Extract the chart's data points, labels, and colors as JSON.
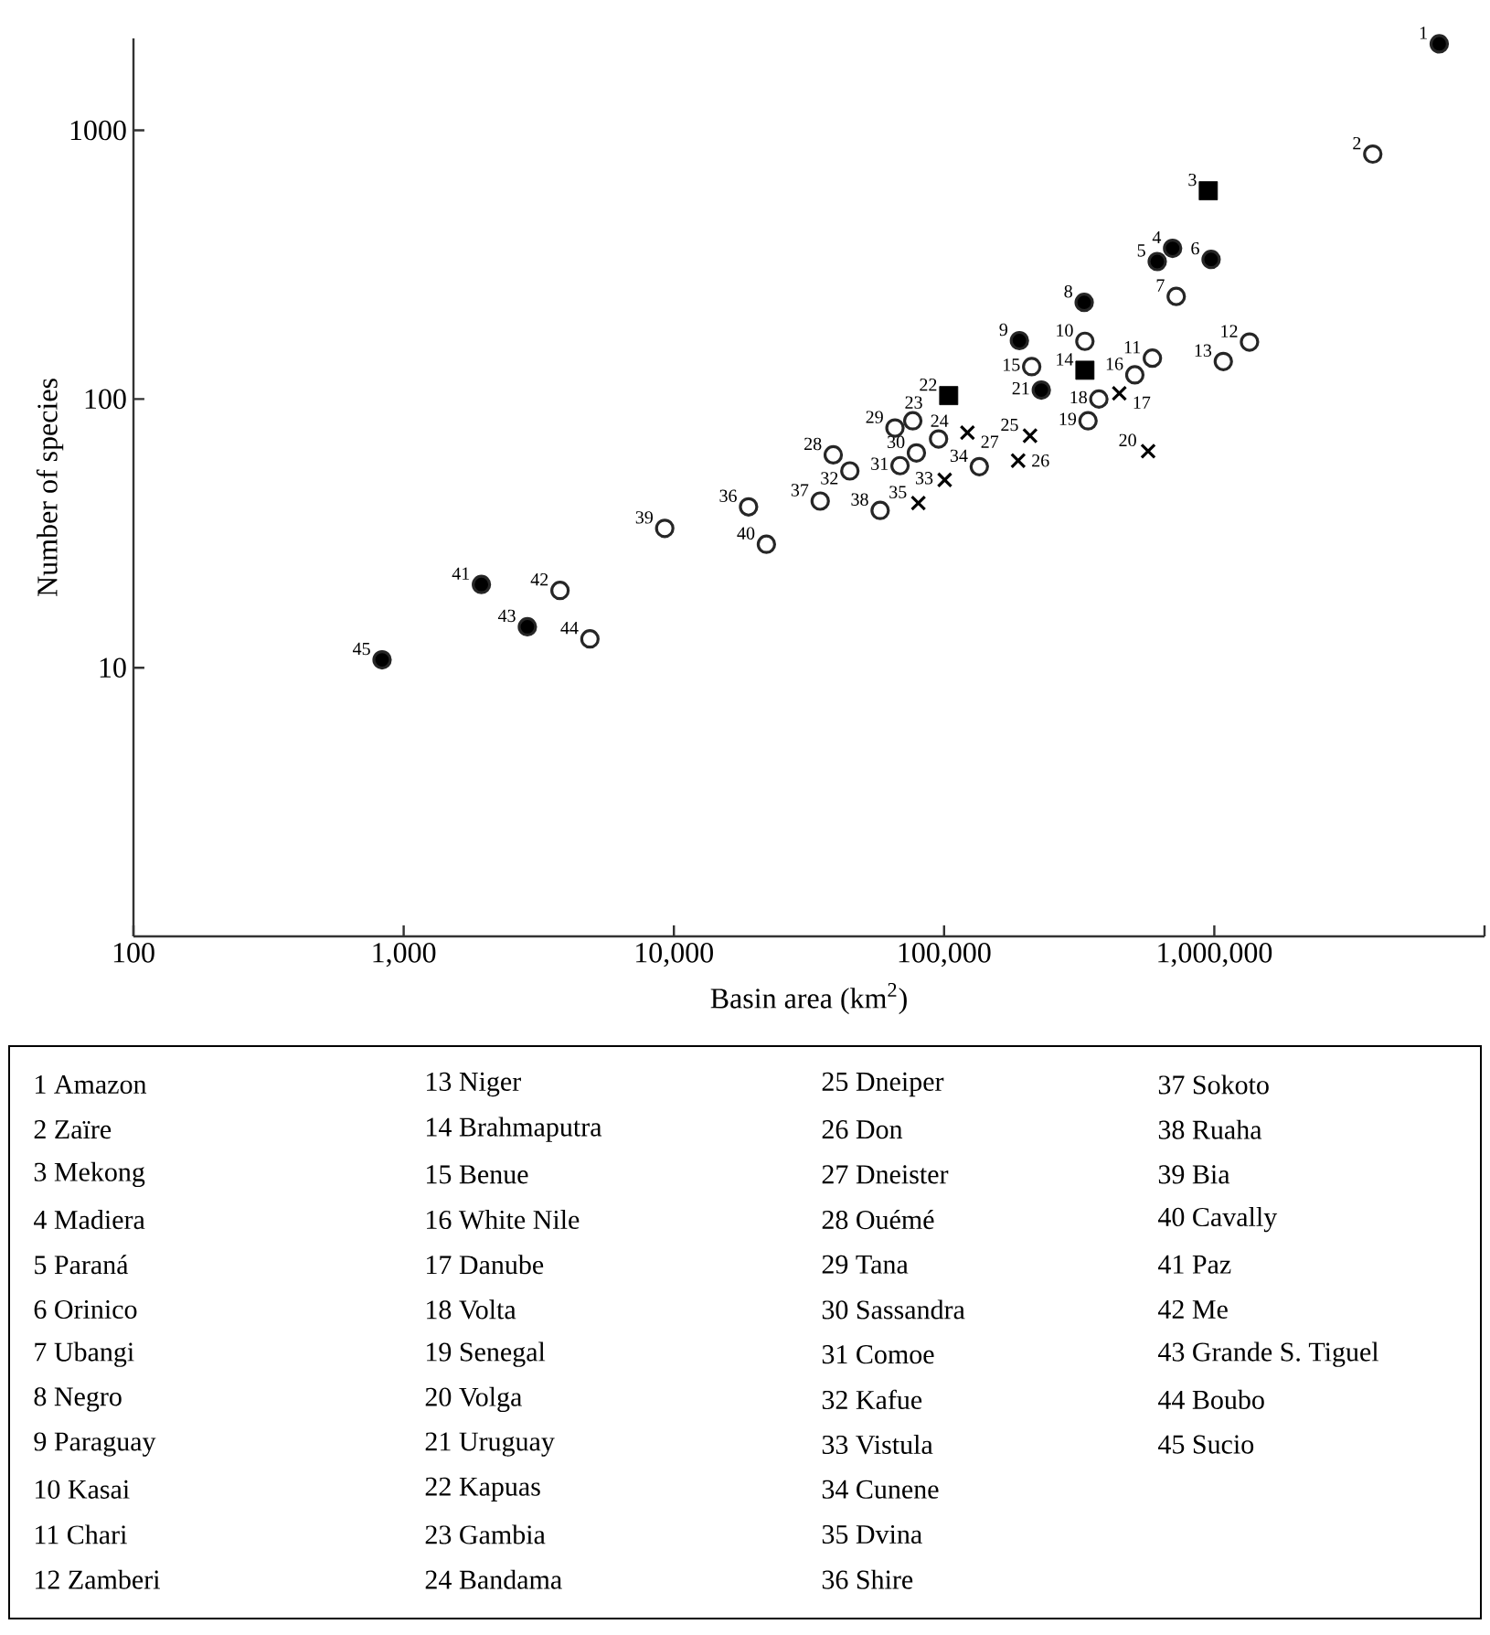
{
  "chart_data": {
    "type": "scatter",
    "xlabel": "Basin area (km$^{2}$)",
    "ylabel": "Number of species",
    "log": "xy",
    "xlim": [
      100,
      10000000
    ],
    "ylim": [
      1,
      2200
    ],
    "xticks": [
      100,
      {
        "value": 1000,
        "label": "1,000"
      },
      {
        "value": 10000,
        "label": "10,000"
      },
      {
        "value": 100000,
        "label": "100,000"
      },
      {
        "value": 1000000,
        "label": "1,000,000"
      },
      {
        "value": 10000000,
        "label": null
      }
    ],
    "yticks": [
      10,
      100,
      1000
    ],
    "series": [
      {
        "marker": "circle",
        "color": "#000000",
        "x": [
          6800000,
          701000,
          615000,
          973000,
          330000,
          190000,
          229000,
          1940,
          2870,
          832
        ],
        "values": [
          2100,
          364,
          325,
          331,
          229,
          165,
          108,
          20.4,
          14.2,
          10.7
        ]
      },
      {
        "marker": "square",
        "color": "#000000",
        "x": [
          950000,
          332000,
          104000
        ],
        "values": [
          596,
          128,
          103
        ]
      },
      {
        "marker": "cross",
        "color": "#000000",
        "x": [
          445000,
          569000,
          208000,
          188000,
          122000,
          100500,
          80300
        ],
        "values": [
          105,
          64,
          73,
          59,
          75,
          50,
          41
        ]
      },
      {
        "marker": "circle",
        "color": "#ffffff",
        "x": [
          3860000,
          723000,
          332000,
          590000,
          1350000,
          1080000,
          211000,
          508000,
          374000,
          341000,
          76600,
          95400,
          38900,
          65800,
          79000,
          68700,
          44800,
          135000,
          58000,
          18900,
          34800,
          9250,
          22000,
          3790,
          4890
        ],
        "values": [
          816,
          241,
          164,
          142,
          163,
          138,
          132,
          123,
          100,
          83,
          83,
          71,
          62,
          78,
          63,
          56.5,
          54,
          56,
          38.5,
          39.7,
          41.7,
          33,
          28.8,
          19.4,
          12.8
        ]
      }
    ],
    "annotations": [
      {
        "text": "1",
        "x": 6800000,
        "y": 2100
      },
      {
        "text": "2",
        "x": 3860000,
        "y": 816
      },
      {
        "text": "3",
        "x": 950000,
        "y": 596
      },
      {
        "text": "4",
        "x": 701000,
        "y": 364
      },
      {
        "text": "5",
        "x": 615000,
        "y": 325
      },
      {
        "text": "6",
        "x": 973000,
        "y": 331
      },
      {
        "text": "7",
        "x": 723000,
        "y": 241
      },
      {
        "text": "8",
        "x": 330000,
        "y": 229
      },
      {
        "text": "9",
        "x": 190000,
        "y": 165
      },
      {
        "text": "10",
        "x": 332000,
        "y": 164
      },
      {
        "text": "11",
        "x": 590000,
        "y": 142
      },
      {
        "text": "12",
        "x": 1350000,
        "y": 163
      },
      {
        "text": "13",
        "x": 1080000,
        "y": 138
      },
      {
        "text": "14",
        "x": 332000,
        "y": 128
      },
      {
        "text": "15",
        "x": 211000,
        "y": 132
      },
      {
        "text": "16",
        "x": 508000,
        "y": 123
      },
      {
        "text": "17",
        "x": 445000,
        "y": 105
      },
      {
        "text": "18",
        "x": 374000,
        "y": 100
      },
      {
        "text": "19",
        "x": 341000,
        "y": 83
      },
      {
        "text": "20",
        "x": 569000,
        "y": 64
      },
      {
        "text": "21",
        "x": 229000,
        "y": 108
      },
      {
        "text": "22",
        "x": 104000,
        "y": 103
      },
      {
        "text": "23",
        "x": 76600,
        "y": 83
      },
      {
        "text": "24",
        "x": 95400,
        "y": 71
      },
      {
        "text": "25",
        "x": 208000,
        "y": 73
      },
      {
        "text": "26",
        "x": 188000,
        "y": 59
      },
      {
        "text": "27",
        "x": 122000,
        "y": 75
      },
      {
        "text": "28",
        "x": 38900,
        "y": 62
      },
      {
        "text": "29",
        "x": 65800,
        "y": 78
      },
      {
        "text": "30",
        "x": 79000,
        "y": 63
      },
      {
        "text": "31",
        "x": 68700,
        "y": 56.5
      },
      {
        "text": "32",
        "x": 44800,
        "y": 54
      },
      {
        "text": "33",
        "x": 100500,
        "y": 50
      },
      {
        "text": "34",
        "x": 135000,
        "y": 56
      },
      {
        "text": "35",
        "x": 80300,
        "y": 41
      },
      {
        "text": "36",
        "x": 18900,
        "y": 39.7
      },
      {
        "text": "37",
        "x": 34800,
        "y": 41.7
      },
      {
        "text": "38",
        "x": 58000,
        "y": 38.5
      },
      {
        "text": "39",
        "x": 9250,
        "y": 33
      },
      {
        "text": "40",
        "x": 22000,
        "y": 28.8
      },
      {
        "text": "41",
        "x": 1940,
        "y": 20.4
      },
      {
        "text": "42",
        "x": 3790,
        "y": 19.4
      },
      {
        "text": "43",
        "x": 2870,
        "y": 14.2
      },
      {
        "text": "44",
        "x": 4890,
        "y": 12.8
      },
      {
        "text": "45",
        "x": 832,
        "y": 10.7
      },
      "1 Amazon",
      "2 Zaïre",
      "3 Mekong",
      "4 Madiera",
      "5 Paraná",
      "6 Orinico",
      "7 Ubangi",
      "8 Negro",
      "9 Paraguay",
      "10 Kasai",
      "11 Chari",
      "12 Zamberi",
      "13 Niger",
      "14 Brahmaputra",
      "15 Benue",
      "16 White Nile",
      "17 Danube",
      "18 Volta",
      "19 Senegal",
      "20 Volga",
      "21 Uruguay",
      "22 Kapuas",
      "23 Gambia",
      "24 Bandama",
      "25 Dneiper",
      "26 Don",
      "27 Dneister",
      "28 Ouémé",
      "29 Tana",
      "30 Sassandra",
      "31 Comoe",
      "32 Kafue",
      "33 Vistula",
      "34 Cunene",
      "35 Dvina",
      "36 Shire",
      "37 Sokoto",
      "38 Ruaha",
      "39 Bia",
      "40 Cavally",
      "41 Paz",
      "42 Me",
      "43 Grande S. Tiguel",
      "44 Boubo",
      "45 Sucio"
    ]
  }
}
